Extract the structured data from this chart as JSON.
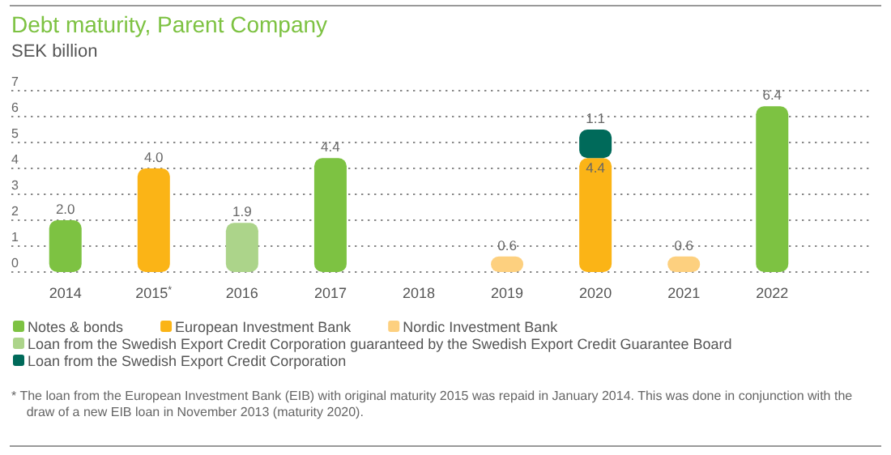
{
  "chart_data": {
    "type": "bar",
    "title": "Debt maturity, Parent Company",
    "subtitle": "SEK billion",
    "stacked": true,
    "grid": "y",
    "legend": "bottom",
    "categories": [
      "2014",
      "2015$^{*}$",
      "2016",
      "2017",
      "2018",
      "2019",
      "2020",
      "2021",
      "2022"
    ],
    "series": [
      {
        "name": "Notes & bonds",
        "color": "#7dc242",
        "values": [
          2.0,
          null,
          null,
          4.4,
          null,
          null,
          null,
          null,
          6.4
        ],
        "value_labels": [
          "2.0",
          null,
          null,
          "4.4",
          null,
          null,
          null,
          null,
          "6.4"
        ]
      },
      {
        "name": "European Investment Bank",
        "color": "#fbb416",
        "values": [
          null,
          4.0,
          null,
          null,
          null,
          null,
          4.4,
          null,
          null
        ],
        "value_labels": [
          null,
          "4.0",
          null,
          null,
          null,
          null,
          "4.4",
          null,
          null
        ]
      },
      {
        "name": "Nordic Investment Bank",
        "color": "#fdd07f",
        "values": [
          null,
          null,
          null,
          null,
          null,
          0.6,
          null,
          0.6,
          null
        ],
        "value_labels": [
          null,
          null,
          null,
          null,
          null,
          "0.6",
          null,
          "0.6",
          null
        ]
      },
      {
        "name": "Loan from the Swedish Export Credit Corporation guaranteed by the Swedish Export Credit Guarantee Board",
        "color": "#acd48a",
        "values": [
          null,
          null,
          1.9,
          null,
          null,
          null,
          null,
          null,
          null
        ],
        "value_labels": [
          null,
          null,
          "1.9",
          null,
          null,
          null,
          null,
          null,
          null
        ]
      },
      {
        "name": "Loan from the Swedish Export Credit Corporation",
        "color": "#006a5a",
        "values": [
          null,
          null,
          null,
          null,
          null,
          null,
          1.1,
          null,
          null
        ],
        "value_labels": [
          null,
          null,
          null,
          null,
          null,
          null,
          "1.1",
          null,
          null
        ]
      }
    ],
    "ylim": [
      0,
      7
    ],
    "yticks": [
      0,
      1,
      2,
      3,
      4,
      5,
      6,
      7
    ],
    "annotations": [
      "* The loan from the European Investment Bank (EIB) with original maturity 2015 was repaid in January 2014. This was done in conjunction with the draw of a new EIB loan in November 2013 (maturity 2020)."
    ]
  }
}
